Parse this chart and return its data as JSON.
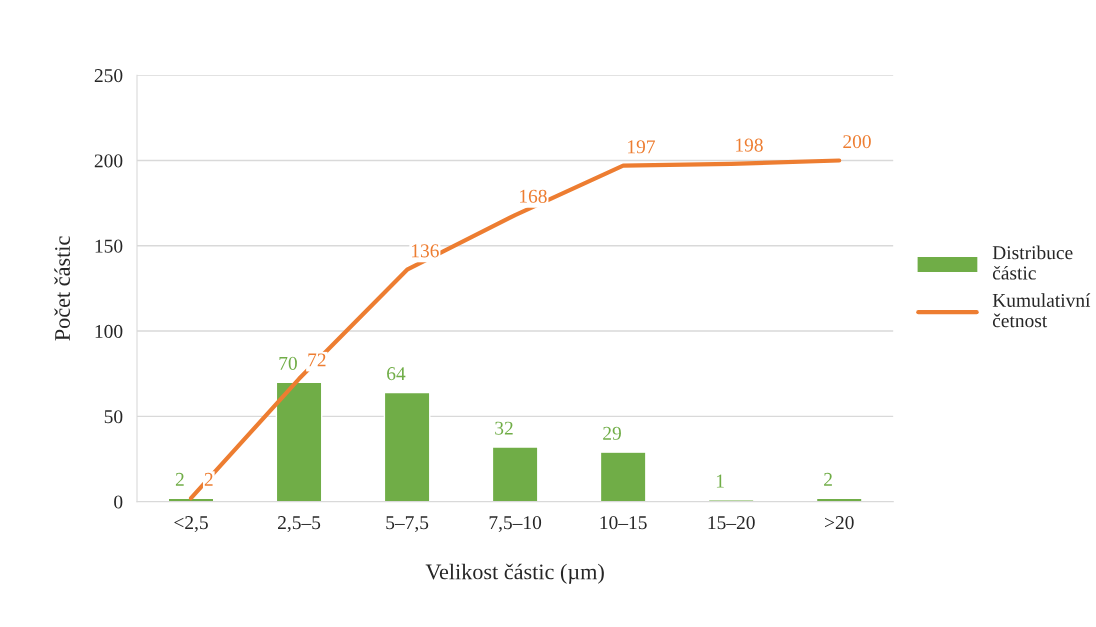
{
  "chart_data": {
    "type": "bar",
    "xlabel": "Velikost částic (µm)",
    "ylabel": "Počet částic",
    "categories": [
      "<2,5",
      "2,5–5",
      "5–7,5",
      "7,5–10",
      "10–15",
      "15–20",
      ">20"
    ],
    "series": [
      {
        "name": "Distribuce částic",
        "color": "#70ad47",
        "values": [
          2,
          70,
          64,
          32,
          29,
          1,
          2
        ]
      },
      {
        "name": "Kumulativní četnost",
        "type": "line",
        "color": "#ed7d31",
        "values": [
          2,
          72,
          136,
          168,
          197,
          198,
          200
        ]
      }
    ],
    "ylim": [
      0,
      250
    ],
    "yticks": [
      0,
      50,
      100,
      150,
      200,
      250
    ],
    "grid": "y",
    "legend": "right",
    "data_labels": true,
    "marker": "none",
    "line_style": "solid"
  }
}
